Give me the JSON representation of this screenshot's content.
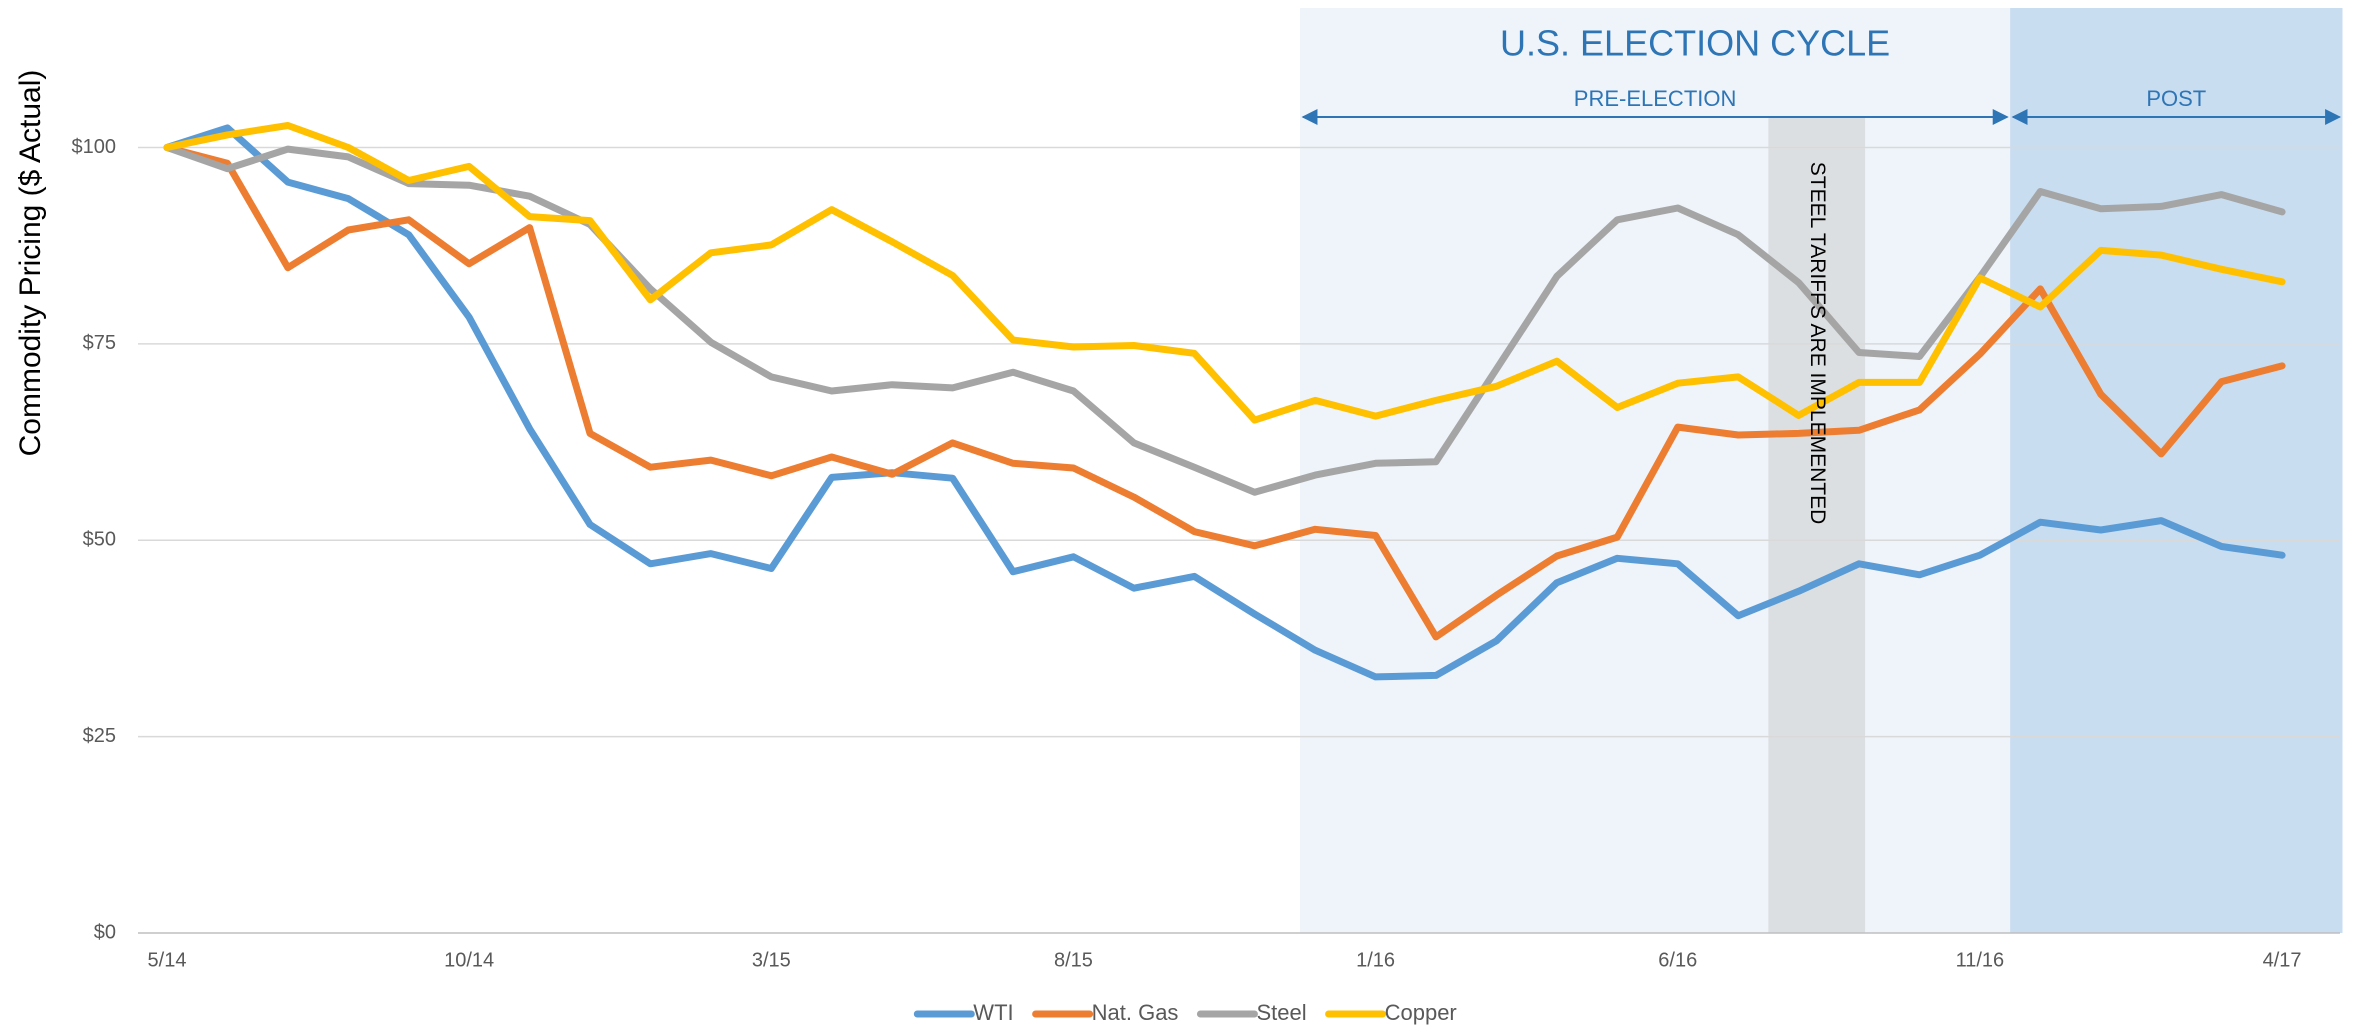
{
  "chart_data": {
    "type": "line",
    "y_label": "Commodity Pricing ($ Actual)",
    "categories": [
      "5/14",
      null,
      null,
      null,
      null,
      "10/14",
      null,
      null,
      null,
      null,
      "3/15",
      null,
      null,
      null,
      null,
      "8/15",
      null,
      null,
      null,
      null,
      "1/16",
      null,
      null,
      null,
      null,
      "6/16",
      null,
      null,
      null,
      null,
      "11/16",
      null,
      null,
      null,
      null,
      "4/17"
    ],
    "series": [
      {
        "name": "WTI",
        "color": "#5b9bd5",
        "values": [
          100,
          102.5,
          95.6,
          93.5,
          88.9,
          78.4,
          64.2,
          52,
          47,
          48.3,
          46.4,
          58,
          58.6,
          57.9,
          46,
          47.9,
          43.9,
          45.4,
          40.6,
          36,
          32.6,
          32.8,
          37.2,
          44.6,
          47.7,
          47,
          40.4,
          43.5,
          47,
          45.6,
          48.1,
          52.3,
          51.3,
          52.5,
          49.2,
          48.1
        ]
      },
      {
        "name": "Nat. Gas",
        "color": "#ed7d31",
        "values": [
          100,
          98,
          84.7,
          89.5,
          90.8,
          85.2,
          89.8,
          63.6,
          59.3,
          60.2,
          58.2,
          60.6,
          58.4,
          62.4,
          59.8,
          59.2,
          55.5,
          51.1,
          49.3,
          51.4,
          50.6,
          37.7,
          43,
          48,
          50.4,
          64.4,
          63.4,
          63.6,
          64,
          66.6,
          73.7,
          82,
          68.6,
          61,
          70.2,
          72.2
        ]
      },
      {
        "name": "Steel",
        "color": "#a5a5a5",
        "values": [
          100,
          97.3,
          99.8,
          98.8,
          95.4,
          95.2,
          93.8,
          90.2,
          82,
          75.2,
          70.8,
          69,
          69.8,
          69.4,
          71.4,
          69,
          62.4,
          59.3,
          56.1,
          58.3,
          59.8,
          60,
          71.8,
          83.6,
          90.8,
          92.3,
          88.9,
          82.8,
          73.9,
          73.4,
          83.5,
          94.4,
          92.2,
          92.5,
          94,
          91.8
        ]
      },
      {
        "name": "Copper",
        "color": "#ffc000",
        "values": [
          100,
          101.6,
          102.8,
          100,
          95.8,
          97.6,
          91.2,
          90.7,
          80.6,
          86.6,
          87.6,
          92.1,
          88,
          83.7,
          75.5,
          74.6,
          74.8,
          73.8,
          65.3,
          67.8,
          65.8,
          67.8,
          69.6,
          72.8,
          66.9,
          70,
          70.8,
          65.9,
          70.1,
          70.1,
          83.4,
          79.7,
          86.9,
          86.3,
          84.5,
          82.9
        ]
      }
    ],
    "ylim": [
      0,
      113
    ],
    "yticks": [
      {
        "value": 0,
        "label": "$0"
      },
      {
        "value": 25,
        "label": "$25"
      },
      {
        "value": 50,
        "label": "$50"
      },
      {
        "value": 75,
        "label": "$75"
      },
      {
        "value": 100,
        "label": "$100"
      }
    ],
    "grid": true,
    "legend": "bottom",
    "region_title": "U.S. ELECTION CYCLE",
    "regions": [
      {
        "label": "PRE-ELECTION",
        "start": 18.75,
        "end": 30.5,
        "color": "#eef4fa",
        "vertical": false
      },
      {
        "label": "POST",
        "start": 30.5,
        "end": 36,
        "color": "#c9ddf0",
        "vertical": false
      },
      {
        "label": "STEEL TARIFFS ARE IMPLEMENTED",
        "start": 26.5,
        "end": 28.1,
        "color": "#dcdfe1",
        "vertical": true
      }
    ]
  }
}
